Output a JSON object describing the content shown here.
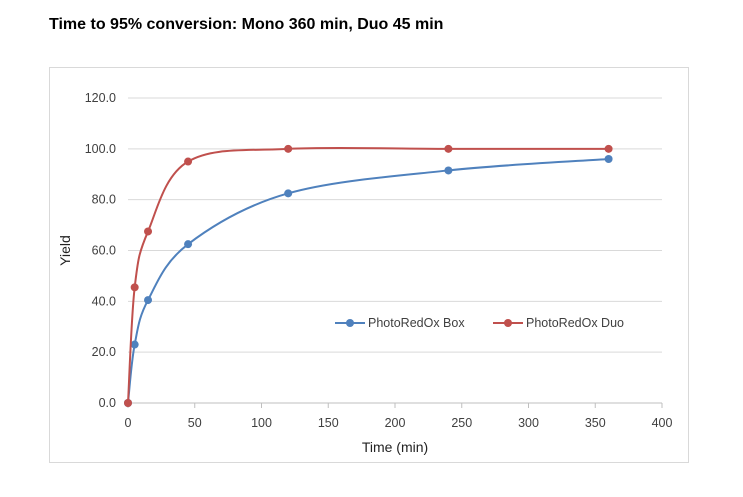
{
  "header": {
    "title": "Time to 95% conversion: Mono 360 min, Duo 45 min"
  },
  "chart_data": {
    "type": "line",
    "title": "",
    "xlabel": "Time (min)",
    "ylabel": "Yield",
    "xlim": [
      0,
      400
    ],
    "ylim": [
      0,
      120
    ],
    "x_ticks": [
      "0",
      "50",
      "100",
      "150",
      "200",
      "250",
      "300",
      "350",
      "400"
    ],
    "y_ticks": [
      "0.0",
      "20.0",
      "40.0",
      "60.0",
      "80.0",
      "100.0",
      "120.0"
    ],
    "grid": true,
    "legend_position": "center-right",
    "series": [
      {
        "name": "PhotoRedOx Box",
        "color": "#4f81bd",
        "x": [
          0,
          5,
          15,
          45,
          120,
          240,
          360
        ],
        "y": [
          0,
          23,
          40.5,
          62.5,
          82.5,
          91.5,
          96
        ]
      },
      {
        "name": "PhotoRedOx Duo",
        "color": "#c0504d",
        "x": [
          0,
          5,
          15,
          45,
          120,
          240,
          360
        ],
        "y": [
          0,
          45.5,
          67.5,
          95,
          100,
          100,
          100
        ]
      }
    ]
  }
}
